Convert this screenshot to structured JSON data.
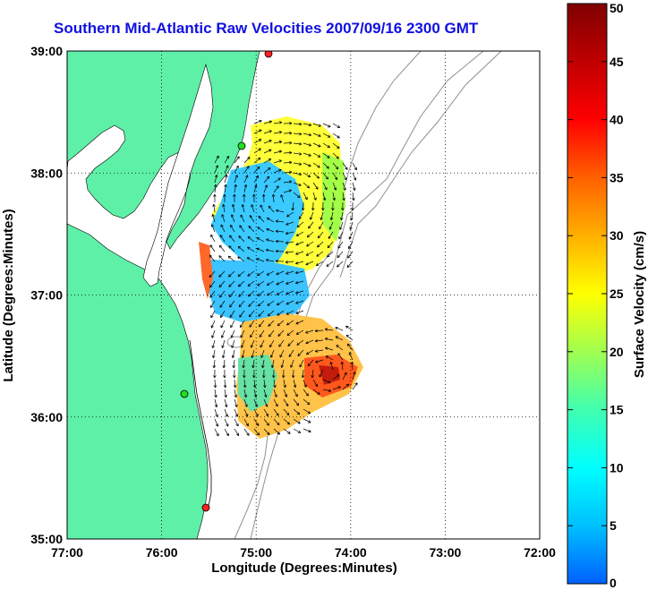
{
  "title": "Southern Mid-Atlantic Raw Velocities 2007/09/16 2300 GMT",
  "map": {
    "x_label": "Longitude (Degrees:Minutes)",
    "y_label": "Latitude (Degrees:Minutes)",
    "x_ticks": [
      "77:00",
      "76:00",
      "75:00",
      "74:00",
      "73:00",
      "72:00"
    ],
    "y_ticks": [
      "39:00",
      "38:00",
      "37:00",
      "36:00",
      "35:00"
    ],
    "lon_range": [
      -77,
      -72
    ],
    "lat_range": [
      35,
      39
    ],
    "land_color": "#5ff0a8",
    "grid": true
  },
  "colorbar": {
    "label": "Surface Velocity (cm/s)",
    "ticks": [
      "50",
      "45",
      "40",
      "35",
      "30",
      "25",
      "20",
      "15",
      "10",
      "5",
      "0"
    ],
    "range": [
      0,
      50
    ],
    "colors": [
      "#0060ff",
      "#00c0ff",
      "#00ffff",
      "#40ffb0",
      "#a0ff50",
      "#ffff00",
      "#ffb000",
      "#ff6000",
      "#ff0000",
      "#c00000",
      "#800000"
    ]
  },
  "stations": [
    {
      "color": "#ff2020"
    },
    {
      "color": "#20e020"
    },
    {
      "color": "#20e020"
    },
    {
      "color": "#ff2020"
    }
  ]
}
